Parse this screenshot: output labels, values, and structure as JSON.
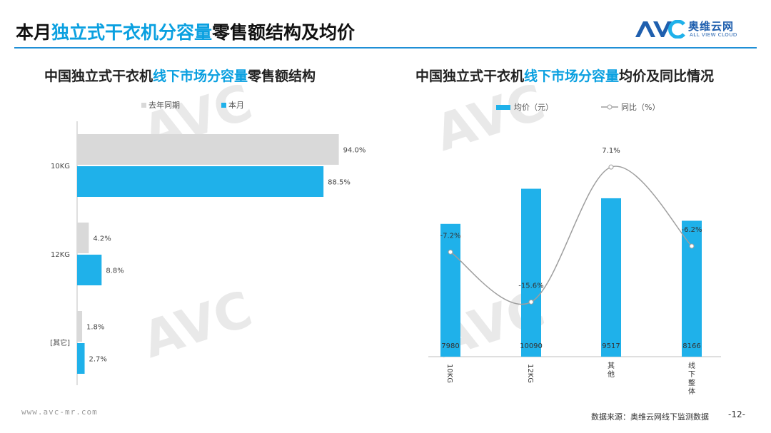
{
  "header": {
    "title_prefix": "本月",
    "title_highlight": "独立式干衣机分容量",
    "title_suffix": "零售额结构及均价",
    "logo_cn": "奥维云网",
    "logo_en": "ALL VIEW CLOUD"
  },
  "colors": {
    "accent": "#1fb1ea",
    "gray_bar": "#d9d9d9",
    "line": "#9e9e9e",
    "title_blue": "#0aa0e0"
  },
  "chart_data": [
    {
      "type": "bar",
      "orientation": "horizontal",
      "title_prefix": "中国独立式干衣机",
      "title_highlight": "线下市场分容量",
      "title_suffix": "零售额结构",
      "categories": [
        "10KG",
        "12KG",
        "[其它]"
      ],
      "series": [
        {
          "name": "去年同期",
          "values": [
            94.0,
            4.2,
            1.8
          ],
          "labels": [
            "94.0%",
            "4.2%",
            "1.8%"
          ]
        },
        {
          "name": "本月",
          "values": [
            88.5,
            8.8,
            2.7
          ],
          "labels": [
            "88.5%",
            "8.8%",
            "2.7%"
          ]
        }
      ],
      "xlim": [
        0,
        100
      ],
      "legend": "top"
    },
    {
      "type": "bar+line",
      "title_prefix": "中国独立式干衣机",
      "title_highlight": "线下市场分容量",
      "title_suffix": "均价及同比情况",
      "categories": [
        "10KG",
        "12KG",
        "其他",
        "线下整体"
      ],
      "series": [
        {
          "name": "均价（元）",
          "type": "bar",
          "values": [
            7980,
            10090,
            9517,
            8166
          ],
          "labels": [
            "7980",
            "10090",
            "9517",
            "8166"
          ]
        },
        {
          "name": "同比（%）",
          "type": "line",
          "values": [
            -7.2,
            -15.6,
            7.1,
            -6.2
          ],
          "labels": [
            "-7.2%",
            "-15.6%",
            "7.1%",
            "-6.2%"
          ]
        }
      ],
      "bar_ylim": [
        0,
        12000
      ],
      "line_ylim": [
        -20,
        10
      ],
      "legend": "top"
    }
  ],
  "footer": {
    "url": "www.avc-mr.com",
    "source": "数据来源：奥维云网线下监测数据",
    "page": "-12-"
  }
}
